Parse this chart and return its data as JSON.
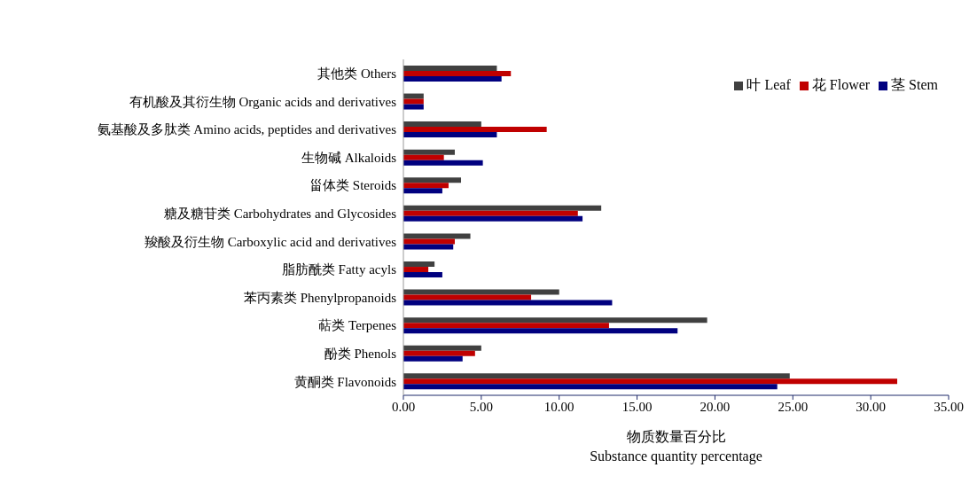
{
  "chart_data": {
    "type": "bar",
    "orientation": "horizontal",
    "xlabel": "物质数量百分比\nSubstance quantity percentage",
    "categories": [
      "其他类 Others",
      "有机酸及其衍生物 Organic acids and derivatives",
      "氨基酸及多肽类 Amino acids, peptides and derivatives",
      "生物碱 Alkaloids",
      "甾体类 Steroids",
      "糖及糖苷类 Carbohydrates and Glycosides",
      "羧酸及衍生物 Carboxylic acid and derivatives",
      "脂肪酰类 Fatty acyls",
      "苯丙素类 Phenylpropanoids",
      "萜类 Terpenes",
      "酚类 Phenols",
      "黄酮类 Flavonoids"
    ],
    "series": [
      {
        "name": "叶 Leaf",
        "color": "#404040",
        "values": [
          6.0,
          1.3,
          5.0,
          3.3,
          3.7,
          12.7,
          4.3,
          2.0,
          10.0,
          19.5,
          5.0,
          24.8
        ]
      },
      {
        "name": "花 Flower",
        "color": "#c00000",
        "values": [
          6.9,
          1.3,
          9.2,
          2.6,
          2.9,
          11.2,
          3.3,
          1.6,
          8.2,
          13.2,
          4.6,
          31.7
        ]
      },
      {
        "name": "茎 Stem",
        "color": "#00007f",
        "values": [
          6.3,
          1.3,
          6.0,
          5.1,
          2.5,
          11.5,
          3.2,
          2.5,
          13.4,
          17.6,
          3.8,
          24.0
        ]
      }
    ],
    "xlim": [
      0,
      35
    ],
    "xticks": [
      {
        "value": 0,
        "label": "0.00"
      },
      {
        "value": 5,
        "label": "5.00"
      },
      {
        "value": 10,
        "label": "10.00"
      },
      {
        "value": 15,
        "label": "15.00"
      },
      {
        "value": 20,
        "label": "20.00"
      },
      {
        "value": 25,
        "label": "25.00"
      },
      {
        "value": 30,
        "label": "30.00"
      },
      {
        "value": 35,
        "label": "35.00"
      }
    ],
    "grid": false,
    "legend": "top right"
  }
}
